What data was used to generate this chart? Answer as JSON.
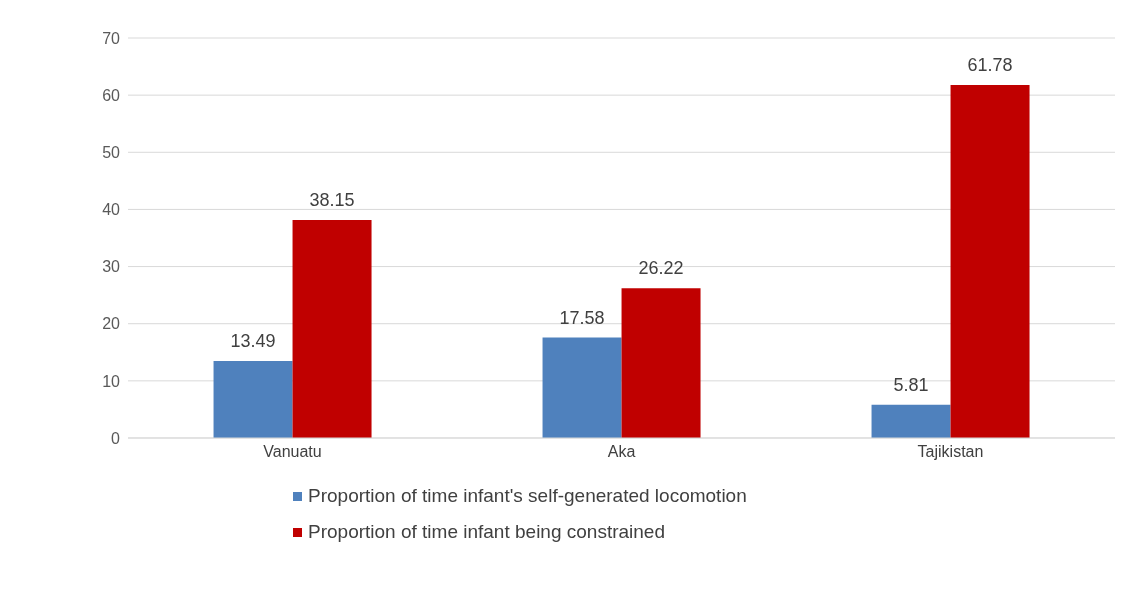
{
  "chart_data": {
    "type": "bar",
    "categories": [
      "Vanuatu",
      "Aka",
      "Tajikistan"
    ],
    "series": [
      {
        "name": "Proportion of time infant's self-generated locomotion",
        "color": "#4f81bd",
        "values": [
          13.49,
          17.58,
          5.81
        ]
      },
      {
        "name": "Proportion of time infant being constrained",
        "color": "#c00000",
        "values": [
          38.15,
          26.22,
          61.78
        ]
      }
    ],
    "ylim": [
      0,
      70
    ],
    "yticks": [
      0,
      10,
      20,
      30,
      40,
      50,
      60,
      70
    ],
    "grid": "y",
    "legend": "bottom",
    "data_labels": true
  }
}
